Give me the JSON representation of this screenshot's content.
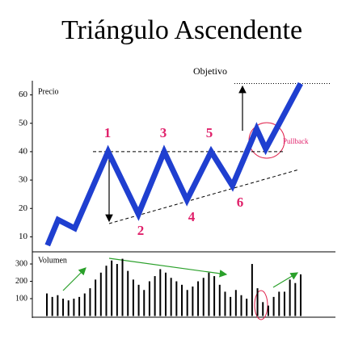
{
  "chart_data": [
    {
      "type": "line",
      "title": "Triángulo Ascendente",
      "ylabel": "Precio",
      "x": [
        5,
        8.5,
        14,
        25,
        35,
        43.5,
        51,
        59,
        66,
        74,
        77,
        88.5
      ],
      "series": [
        {
          "name": "Precio",
          "color": "#1f3fd0",
          "values": [
            7,
            16,
            13,
            40,
            18,
            40,
            23,
            40,
            28,
            48,
            41,
            64
          ]
        }
      ],
      "xlim": [
        0,
        100
      ],
      "ylim": [
        5,
        65
      ],
      "yticks": [
        10,
        20,
        30,
        40,
        50,
        60
      ],
      "resistance_level": 40,
      "target_level": 64,
      "annotations": [
        "1",
        "2",
        "3",
        "4",
        "5",
        "6",
        "Objetivo",
        "Pullback"
      ]
    },
    {
      "type": "bar",
      "ylabel": "Volumen",
      "color": "#000000",
      "values": [
        130,
        110,
        120,
        100,
        90,
        100,
        110,
        130,
        160,
        210,
        250,
        290,
        320,
        300,
        330,
        260,
        210,
        180,
        150,
        200,
        230,
        270,
        250,
        220,
        200,
        180,
        150,
        170,
        200,
        220,
        250,
        230,
        180,
        140,
        110,
        150,
        120,
        100,
        300,
        160,
        80,
        60,
        110,
        140,
        140,
        210,
        190,
        240
      ],
      "ylim": [
        0,
        370
      ],
      "yticks": [
        100,
        200,
        300
      ]
    }
  ]
}
